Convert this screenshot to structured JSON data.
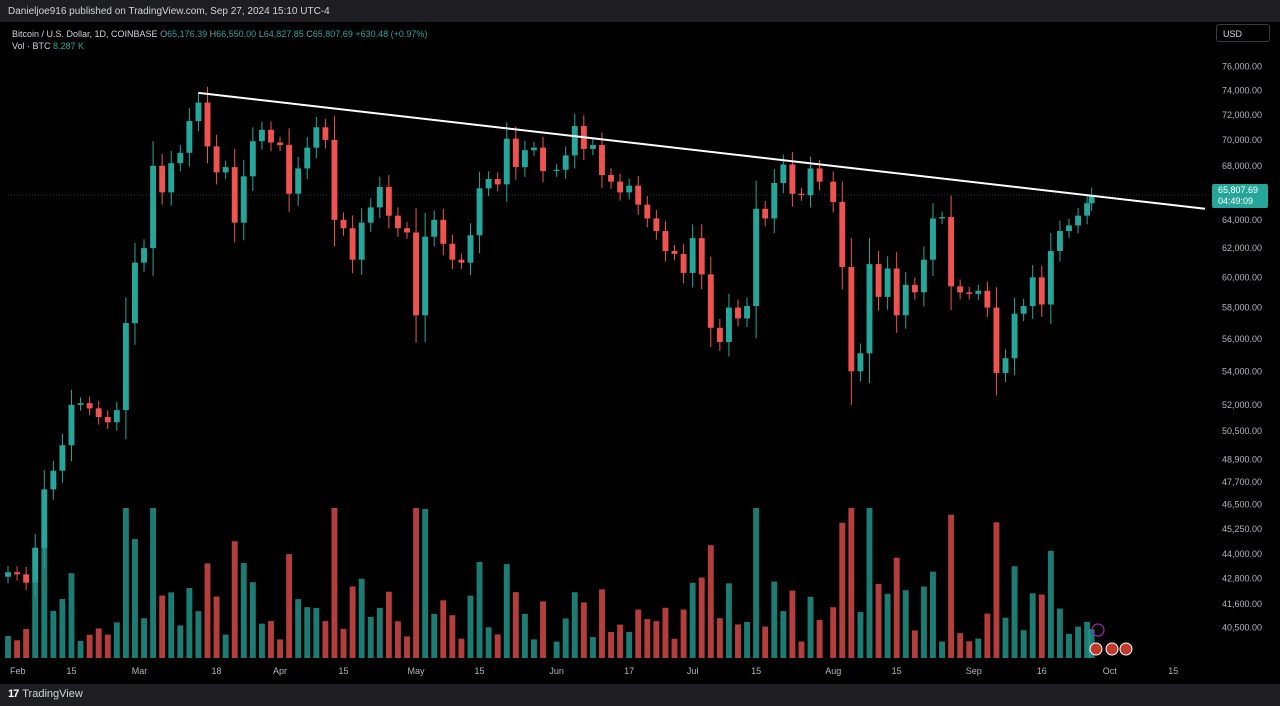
{
  "header": {
    "attribution": "Danieljoe916 published on TradingView.com, Sep 27, 2024 15:10 UTC-4"
  },
  "footer": {
    "brand": "TradingView",
    "logo_glyph": "17"
  },
  "legend": {
    "symbol": "Bitcoin / U.S. Dollar, 1D, COINBASE",
    "open_label": "O",
    "open": "65,176.39",
    "high_label": "H",
    "high": "66,550.00",
    "low_label": "L",
    "low": "64,827.85",
    "close_label": "C",
    "close": "65,807.69",
    "change": "+630.48 (+0.97%)",
    "vol_label": "Vol · BTC",
    "vol_value": "8.287 K"
  },
  "currency_button": "USD",
  "price_tag": {
    "price": "65,807.69",
    "countdown": "04:49:09"
  },
  "colors": {
    "up": "#26a69a",
    "down": "#ef5350",
    "trendline": "#ffffff",
    "background": "#000000"
  },
  "chart_data": {
    "type": "candlestick",
    "title": "",
    "y_ticks": [
      40500,
      41600,
      42800,
      44000,
      45250,
      46500,
      47700,
      48900,
      50500,
      52000,
      54000,
      56000,
      58000,
      60000,
      62000,
      64000,
      66000,
      68000,
      70000,
      72000,
      74000,
      76000
    ],
    "y_tick_labels": [
      "40,500.00",
      "41,600.00",
      "42,800.00",
      "44,000.00",
      "45,250.00",
      "46,500.00",
      "47,700.00",
      "48,900.00",
      "50,500.00",
      "52,000.00",
      "54,000.00",
      "56,000.00",
      "58,000.00",
      "60,000.00",
      "62,000.00",
      "64,000.00",
      "66,000.00",
      "68,000.00",
      "70,000.00",
      "72,000.00",
      "74,000.00",
      "76,000.00"
    ],
    "x_tick_labels": [
      "Feb",
      "15",
      "Mar",
      "18",
      "Apr",
      "15",
      "May",
      "15",
      "Jun",
      "17",
      "Jul",
      "15",
      "Aug",
      "15",
      "Sep",
      "16",
      "Oct",
      "15"
    ],
    "x_tick_dates": [
      "2024-02-01",
      "2024-02-15",
      "2024-03-01",
      "2024-03-18",
      "2024-04-01",
      "2024-04-15",
      "2024-05-01",
      "2024-05-15",
      "2024-06-01",
      "2024-06-17",
      "2024-07-01",
      "2024-07-15",
      "2024-08-01",
      "2024-08-15",
      "2024-09-01",
      "2024-09-16",
      "2024-10-01",
      "2024-10-15"
    ],
    "date_range": [
      "2024-02-01",
      "2024-10-22"
    ],
    "price_range": [
      39500,
      77000
    ],
    "scale": "log",
    "closes": [
      [
        "2024-02-01",
        43100
      ],
      [
        "2024-02-03",
        43000
      ],
      [
        "2024-02-05",
        42600
      ],
      [
        "2024-02-07",
        44300
      ],
      [
        "2024-02-09",
        47300
      ],
      [
        "2024-02-11",
        48300
      ],
      [
        "2024-02-13",
        49700
      ],
      [
        "2024-02-15",
        52000
      ],
      [
        "2024-02-17",
        52100
      ],
      [
        "2024-02-19",
        51800
      ],
      [
        "2024-02-21",
        51300
      ],
      [
        "2024-02-23",
        51000
      ],
      [
        "2024-02-25",
        51700
      ],
      [
        "2024-02-27",
        57000
      ],
      [
        "2024-02-29",
        61000
      ],
      [
        "2024-03-02",
        62000
      ],
      [
        "2024-03-04",
        68000
      ],
      [
        "2024-03-06",
        66000
      ],
      [
        "2024-03-08",
        68200
      ],
      [
        "2024-03-10",
        69000
      ],
      [
        "2024-03-12",
        71500
      ],
      [
        "2024-03-14",
        73000
      ],
      [
        "2024-03-16",
        69500
      ],
      [
        "2024-03-18",
        67500
      ],
      [
        "2024-03-20",
        67900
      ],
      [
        "2024-03-22",
        63800
      ],
      [
        "2024-03-24",
        67200
      ],
      [
        "2024-03-26",
        69900
      ],
      [
        "2024-03-28",
        70800
      ],
      [
        "2024-03-30",
        69800
      ],
      [
        "2024-04-01",
        69600
      ],
      [
        "2024-04-03",
        65900
      ],
      [
        "2024-04-05",
        67800
      ],
      [
        "2024-04-07",
        69400
      ],
      [
        "2024-04-09",
        71000
      ],
      [
        "2024-04-11",
        70000
      ],
      [
        "2024-04-13",
        64000
      ],
      [
        "2024-04-15",
        63400
      ],
      [
        "2024-04-17",
        61200
      ],
      [
        "2024-04-19",
        63800
      ],
      [
        "2024-04-21",
        64900
      ],
      [
        "2024-04-23",
        66400
      ],
      [
        "2024-04-25",
        64300
      ],
      [
        "2024-04-27",
        63400
      ],
      [
        "2024-04-29",
        63100
      ],
      [
        "2024-05-01",
        57500
      ],
      [
        "2024-05-03",
        62800
      ],
      [
        "2024-05-05",
        64000
      ],
      [
        "2024-05-07",
        62300
      ],
      [
        "2024-05-09",
        61200
      ],
      [
        "2024-05-11",
        61000
      ],
      [
        "2024-05-13",
        62900
      ],
      [
        "2024-05-15",
        66300
      ],
      [
        "2024-05-17",
        67000
      ],
      [
        "2024-05-19",
        66600
      ],
      [
        "2024-05-21",
        70100
      ],
      [
        "2024-05-23",
        67900
      ],
      [
        "2024-05-25",
        69200
      ],
      [
        "2024-05-27",
        69400
      ],
      [
        "2024-05-29",
        67600
      ],
      [
        "2024-06-01",
        67700
      ],
      [
        "2024-06-03",
        68800
      ],
      [
        "2024-06-05",
        71100
      ],
      [
        "2024-06-07",
        69300
      ],
      [
        "2024-06-09",
        69600
      ],
      [
        "2024-06-11",
        67300
      ],
      [
        "2024-06-13",
        66800
      ],
      [
        "2024-06-15",
        66000
      ],
      [
        "2024-06-17",
        66500
      ],
      [
        "2024-06-19",
        65100
      ],
      [
        "2024-06-21",
        64100
      ],
      [
        "2024-06-23",
        63200
      ],
      [
        "2024-06-25",
        61800
      ],
      [
        "2024-06-27",
        61600
      ],
      [
        "2024-06-29",
        60300
      ],
      [
        "2024-07-01",
        62700
      ],
      [
        "2024-07-03",
        60200
      ],
      [
        "2024-07-05",
        56700
      ],
      [
        "2024-07-07",
        55800
      ],
      [
        "2024-07-09",
        58000
      ],
      [
        "2024-07-11",
        57300
      ],
      [
        "2024-07-13",
        58100
      ],
      [
        "2024-07-15",
        64800
      ],
      [
        "2024-07-17",
        64100
      ],
      [
        "2024-07-19",
        66700
      ],
      [
        "2024-07-21",
        68100
      ],
      [
        "2024-07-23",
        65900
      ],
      [
        "2024-07-25",
        65800
      ],
      [
        "2024-07-27",
        67800
      ],
      [
        "2024-07-29",
        66800
      ],
      [
        "2024-08-01",
        65300
      ],
      [
        "2024-08-03",
        60700
      ],
      [
        "2024-08-05",
        54000
      ],
      [
        "2024-08-07",
        55100
      ],
      [
        "2024-08-09",
        60900
      ],
      [
        "2024-08-11",
        58700
      ],
      [
        "2024-08-13",
        60600
      ],
      [
        "2024-08-15",
        57500
      ],
      [
        "2024-08-17",
        59500
      ],
      [
        "2024-08-19",
        59000
      ],
      [
        "2024-08-21",
        61200
      ],
      [
        "2024-08-23",
        64100
      ],
      [
        "2024-08-25",
        64200
      ],
      [
        "2024-08-27",
        59400
      ],
      [
        "2024-08-29",
        59000
      ],
      [
        "2024-08-31",
        58900
      ],
      [
        "2024-09-02",
        59100
      ],
      [
        "2024-09-04",
        58000
      ],
      [
        "2024-09-06",
        53900
      ],
      [
        "2024-09-08",
        54800
      ],
      [
        "2024-09-10",
        57600
      ],
      [
        "2024-09-12",
        58100
      ],
      [
        "2024-09-14",
        60000
      ],
      [
        "2024-09-16",
        58200
      ],
      [
        "2024-09-18",
        61800
      ],
      [
        "2024-09-20",
        63200
      ],
      [
        "2024-09-22",
        63600
      ],
      [
        "2024-09-24",
        64300
      ],
      [
        "2024-09-26",
        65200
      ],
      [
        "2024-09-27",
        65807.69
      ]
    ],
    "trendline": {
      "from": [
        "2024-03-14",
        73800
      ],
      "to": [
        "2024-10-22",
        64800
      ],
      "color": "#ffffff"
    },
    "current_price_line": 65807.69
  }
}
